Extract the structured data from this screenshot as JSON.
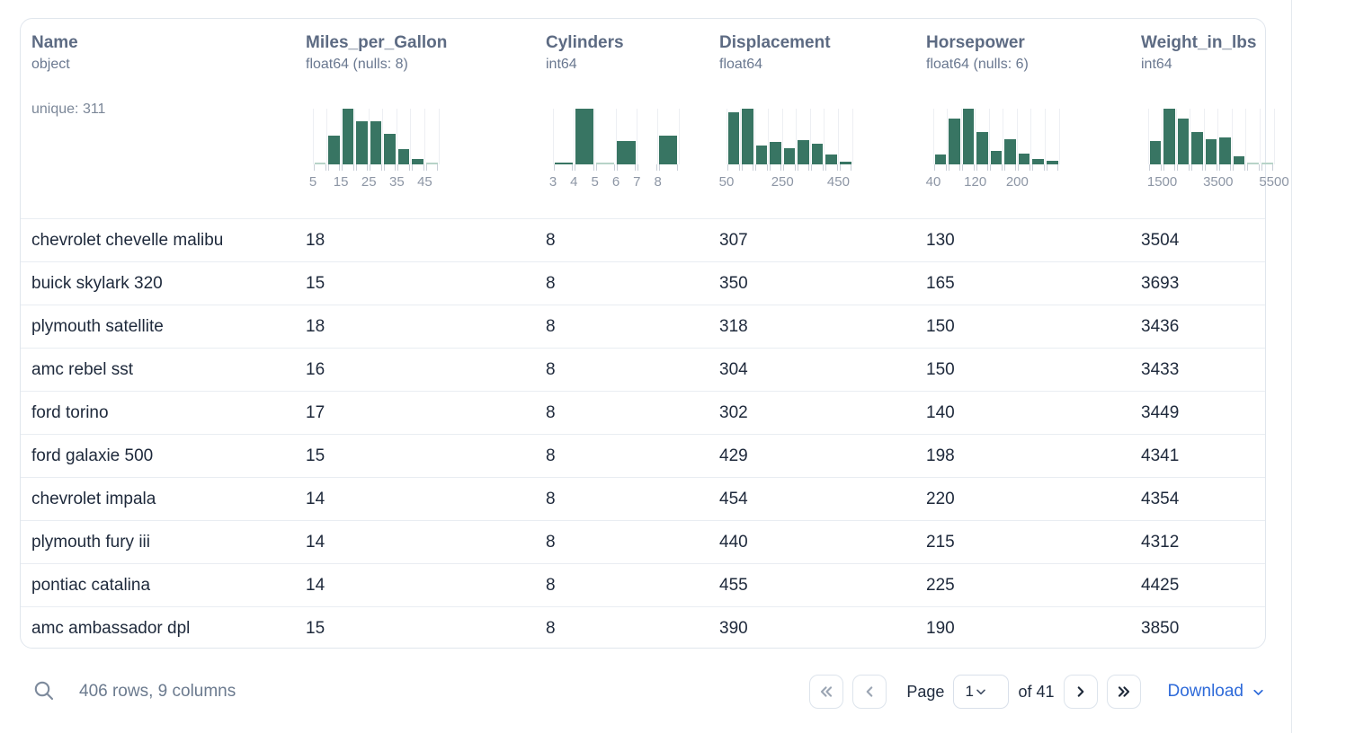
{
  "card": {
    "columns": [
      {
        "name": "Name",
        "type": "object",
        "extra": "unique: 311"
      },
      {
        "name": "Miles_per_Gallon",
        "type": "float64 (nulls: 8)"
      },
      {
        "name": "Cylinders",
        "type": "int64"
      },
      {
        "name": "Displacement",
        "type": "float64"
      },
      {
        "name": "Horsepower",
        "type": "float64 (nulls: 6)"
      },
      {
        "name": "Weight_in_lbs",
        "type": "int64"
      }
    ],
    "rows": [
      [
        "chevrolet chevelle malibu",
        "18",
        "8",
        "307",
        "130",
        "3504"
      ],
      [
        "buick skylark 320",
        "15",
        "8",
        "350",
        "165",
        "3693"
      ],
      [
        "plymouth satellite",
        "18",
        "8",
        "318",
        "150",
        "3436"
      ],
      [
        "amc rebel sst",
        "16",
        "8",
        "304",
        "150",
        "3433"
      ],
      [
        "ford torino",
        "17",
        "8",
        "302",
        "140",
        "3449"
      ],
      [
        "ford galaxie 500",
        "15",
        "8",
        "429",
        "198",
        "4341"
      ],
      [
        "chevrolet impala",
        "14",
        "8",
        "454",
        "220",
        "4354"
      ],
      [
        "plymouth fury iii",
        "14",
        "8",
        "440",
        "215",
        "4312"
      ],
      [
        "pontiac catalina",
        "14",
        "8",
        "455",
        "225",
        "4425"
      ],
      [
        "amc ambassador dpl",
        "15",
        "8",
        "390",
        "190",
        "3850"
      ]
    ]
  },
  "chart_data": [
    {
      "type": "bar",
      "column": "Miles_per_Gallon",
      "values": [
        0.02,
        0.52,
        1.0,
        0.78,
        0.77,
        0.55,
        0.28,
        0.09,
        0.02
      ],
      "tick_labels": [
        {
          "text": "5",
          "pos": 0
        },
        {
          "text": "15",
          "pos": 0.2222
        },
        {
          "text": "25",
          "pos": 0.4444
        },
        {
          "text": "35",
          "pos": 0.6667
        },
        {
          "text": "45",
          "pos": 0.8889
        }
      ]
    },
    {
      "type": "bar",
      "column": "Cylinders",
      "values": [
        0.04,
        1.0,
        0.02,
        0.42,
        0,
        0.52
      ],
      "tick_labels": [
        {
          "text": "3",
          "pos": 0
        },
        {
          "text": "4",
          "pos": 0.1667
        },
        {
          "text": "5",
          "pos": 0.3333
        },
        {
          "text": "6",
          "pos": 0.5
        },
        {
          "text": "7",
          "pos": 0.6667
        },
        {
          "text": "8",
          "pos": 0.8333
        }
      ]
    },
    {
      "type": "bar",
      "column": "Displacement",
      "values": [
        0.93,
        1.0,
        0.34,
        0.4,
        0.29,
        0.43,
        0.37,
        0.17,
        0.05
      ],
      "tick_labels": [
        {
          "text": "50",
          "pos": 0
        },
        {
          "text": "250",
          "pos": 0.4444
        },
        {
          "text": "450",
          "pos": 0.8889
        }
      ]
    },
    {
      "type": "bar",
      "column": "Horsepower",
      "values": [
        0.17,
        0.83,
        1.0,
        0.58,
        0.24,
        0.45,
        0.2,
        0.1,
        0.07
      ],
      "tick_labels": [
        {
          "text": "40",
          "pos": 0
        },
        {
          "text": "120",
          "pos": 0.3333
        },
        {
          "text": "200",
          "pos": 0.6667
        }
      ]
    },
    {
      "type": "bar",
      "column": "Weight_in_lbs",
      "values": [
        0.42,
        1.0,
        0.82,
        0.58,
        0.45,
        0.48,
        0.15,
        0.02,
        0.02
      ],
      "tick_labels": [
        {
          "text": "1500",
          "pos": 0.1111
        },
        {
          "text": "3500",
          "pos": 0.5556
        },
        {
          "text": "5500",
          "pos": 1.0
        }
      ]
    }
  ],
  "footer": {
    "summary": "406 rows, 9 columns",
    "page_label": "Page",
    "page_value": "1",
    "of_label": "of 41",
    "download_label": "Download"
  },
  "colors": {
    "bar_green": "#387563",
    "bar_trace": "#b7d3c8",
    "accent_blue": "#2e6ad9"
  }
}
